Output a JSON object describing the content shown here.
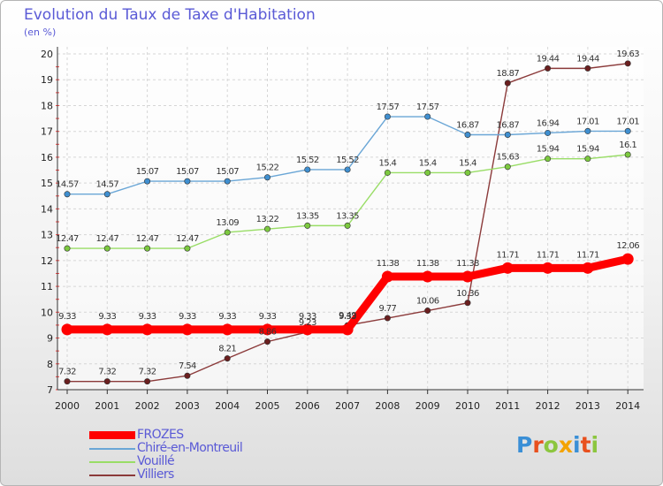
{
  "chart_data": {
    "type": "line",
    "title": "Evolution du Taux de Taxe d'Habitation",
    "unit_label": "(en %)",
    "xlabel": "",
    "ylabel": "",
    "x": [
      "2000",
      "2001",
      "2002",
      "2003",
      "2004",
      "2005",
      "2006",
      "2007",
      "2008",
      "2009",
      "2010",
      "2011",
      "2012",
      "2013",
      "2014"
    ],
    "ylim": [
      7,
      20
    ],
    "yticks": [
      7,
      8,
      9,
      10,
      11,
      12,
      13,
      14,
      15,
      16,
      17,
      18,
      19,
      20
    ],
    "grid": true,
    "legend_position": "bottom-left",
    "series": [
      {
        "name": "FROZES",
        "color": "#ff0000",
        "marker_color": "#ff0000",
        "values": [
          9.33,
          9.33,
          9.33,
          9.33,
          9.33,
          9.33,
          9.33,
          9.33,
          11.38,
          11.38,
          11.38,
          11.71,
          11.71,
          11.71,
          12.06
        ],
        "labels": [
          "9.33",
          "9.33",
          "9.33",
          "9.33",
          "9.33",
          "9.33",
          "9.33",
          "9.33",
          "11.38",
          "11.38",
          "11.38",
          "11.71",
          "11.71",
          "11.71",
          "12.06"
        ]
      },
      {
        "name": "Chiré-en-Montreuil",
        "color": "#6aa6d6",
        "marker_color": "#3f8fd0",
        "values": [
          14.57,
          14.57,
          15.07,
          15.07,
          15.07,
          15.22,
          15.52,
          15.52,
          17.57,
          17.57,
          16.87,
          16.87,
          16.94,
          17.01,
          17.01
        ],
        "labels": [
          "14.57",
          "14.57",
          "15.07",
          "15.07",
          "15.07",
          "15.22",
          "15.52",
          "15.52",
          "17.57",
          "17.57",
          "16.87",
          "16.87",
          "16.94",
          "17.01",
          "17.01"
        ]
      },
      {
        "name": "Vouillé",
        "color": "#99dd66",
        "marker_color": "#7cc93f",
        "values": [
          12.47,
          12.47,
          12.47,
          12.47,
          13.09,
          13.22,
          13.35,
          13.35,
          15.4,
          15.4,
          15.4,
          15.63,
          15.94,
          15.94,
          16.1
        ],
        "labels": [
          "12.47",
          "12.47",
          "12.47",
          "12.47",
          "13.09",
          "13.22",
          "13.35",
          "13.35",
          "15.4",
          "15.4",
          "15.4",
          "15.63",
          "15.94",
          "15.94",
          "16.1"
        ]
      },
      {
        "name": "Villiers",
        "color": "#8b3a3a",
        "marker_color": "#6b1f1f",
        "values": [
          7.32,
          7.32,
          7.32,
          7.54,
          8.21,
          8.86,
          9.23,
          9.49,
          9.77,
          10.06,
          10.36,
          18.87,
          19.44,
          19.44,
          19.63
        ],
        "labels": [
          "7.32",
          "7.32",
          "7.32",
          "7.54",
          "8.21",
          "8.86",
          "9.23",
          "9.49",
          "9.77",
          "10.06",
          "10.36",
          "18.87",
          "19.44",
          "19.44",
          "19.63"
        ]
      }
    ]
  },
  "logo": {
    "letters": [
      "P",
      "r",
      "o",
      "x",
      "i",
      "t",
      "i"
    ],
    "colors": [
      "#3a8fd6",
      "#e8501e",
      "#8cc63f",
      "#f4a300",
      "#3a8fd6",
      "#e8501e",
      "#8cc63f"
    ]
  }
}
